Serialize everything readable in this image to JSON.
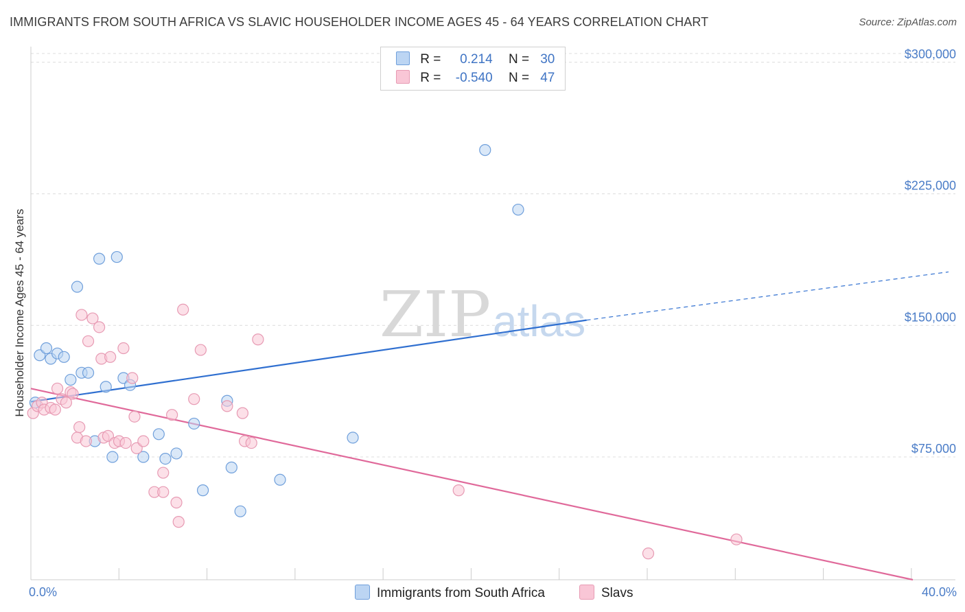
{
  "title": "IMMIGRANTS FROM SOUTH AFRICA VS SLAVIC HOUSEHOLDER INCOME AGES 45 - 64 YEARS CORRELATION CHART",
  "source": "Source: ZipAtlas.com",
  "watermark": {
    "zip": "ZIP",
    "atlas": "atlas"
  },
  "legend": {
    "r_label": "R =",
    "n_label": "N =",
    "rows": [
      {
        "r": "0.214",
        "n": "30",
        "color": "#bcd5f3",
        "border": "#6f9fdb"
      },
      {
        "r": "-0.540",
        "n": "47",
        "color": "#f9c6d6",
        "border": "#e79ab3"
      }
    ]
  },
  "bottom_legend": [
    {
      "name": "Immigrants from South Africa",
      "color": "#bcd5f3",
      "border": "#6f9fdb"
    },
    {
      "name": "Slavs",
      "color": "#f9c6d6",
      "border": "#e79ab3"
    }
  ],
  "chart_data": {
    "type": "scatter",
    "xlabel": "",
    "ylabel": "Householder Income Ages 45 - 64 years",
    "xlim": [
      0,
      40
    ],
    "ylim": [
      5000,
      305000
    ],
    "x_tick_labels": [
      "0.0%",
      "40.0%"
    ],
    "y_ticks": [
      75000,
      150000,
      225000,
      300000
    ],
    "y_tick_labels": [
      "$75,000",
      "$150,000",
      "$225,000",
      "$300,000"
    ],
    "grid": "horizontal dashed",
    "series": [
      {
        "name": "Immigrants from South Africa",
        "color": "#6f9fdb",
        "fill": "#bcd5f3",
        "points": [
          [
            0.2,
            106000
          ],
          [
            0.4,
            133000
          ],
          [
            0.7,
            137000
          ],
          [
            0.9,
            131000
          ],
          [
            1.2,
            134000
          ],
          [
            1.5,
            132000
          ],
          [
            1.8,
            119000
          ],
          [
            2.1,
            172000
          ],
          [
            2.3,
            123000
          ],
          [
            2.6,
            123000
          ],
          [
            2.9,
            84000
          ],
          [
            3.1,
            188000
          ],
          [
            3.4,
            115000
          ],
          [
            3.7,
            75000
          ],
          [
            3.9,
            189000
          ],
          [
            4.2,
            120000
          ],
          [
            4.5,
            116000
          ],
          [
            5.1,
            75000
          ],
          [
            5.8,
            88000
          ],
          [
            6.1,
            74000
          ],
          [
            6.6,
            77000
          ],
          [
            7.4,
            94000
          ],
          [
            7.8,
            56000
          ],
          [
            8.9,
            107000
          ],
          [
            9.1,
            69000
          ],
          [
            9.5,
            44000
          ],
          [
            11.3,
            62000
          ],
          [
            14.6,
            86000
          ],
          [
            20.6,
            250000
          ],
          [
            22.1,
            216000
          ]
        ],
        "trend": {
          "x": [
            0,
            25.2
          ],
          "y": [
            106500,
            153000
          ],
          "dashed_to": [
            52,
            180500
          ]
        }
      },
      {
        "name": "Slavs",
        "color": "#e79ab3",
        "fill": "#f9c6d6",
        "points": [
          [
            0.1,
            100000
          ],
          [
            0.3,
            104000
          ],
          [
            0.5,
            106000
          ],
          [
            0.6,
            102000
          ],
          [
            0.9,
            103000
          ],
          [
            1.1,
            102000
          ],
          [
            1.2,
            114000
          ],
          [
            1.4,
            108000
          ],
          [
            1.6,
            106000
          ],
          [
            1.8,
            112000
          ],
          [
            1.9,
            111000
          ],
          [
            2.1,
            86000
          ],
          [
            2.2,
            92000
          ],
          [
            2.3,
            156000
          ],
          [
            2.5,
            84000
          ],
          [
            2.6,
            141000
          ],
          [
            2.8,
            154000
          ],
          [
            3.1,
            149000
          ],
          [
            3.2,
            131000
          ],
          [
            3.3,
            86000
          ],
          [
            3.5,
            87000
          ],
          [
            3.6,
            132000
          ],
          [
            3.8,
            83000
          ],
          [
            4.0,
            84000
          ],
          [
            4.2,
            137000
          ],
          [
            4.3,
            83000
          ],
          [
            4.6,
            120000
          ],
          [
            4.7,
            98000
          ],
          [
            4.8,
            80000
          ],
          [
            5.1,
            84000
          ],
          [
            5.6,
            55000
          ],
          [
            6.0,
            55000
          ],
          [
            6.0,
            66000
          ],
          [
            6.4,
            99000
          ],
          [
            6.6,
            49000
          ],
          [
            6.7,
            38000
          ],
          [
            6.9,
            159000
          ],
          [
            7.4,
            108000
          ],
          [
            7.7,
            136000
          ],
          [
            8.9,
            104000
          ],
          [
            9.6,
            100000
          ],
          [
            9.7,
            84000
          ],
          [
            10.0,
            83000
          ],
          [
            10.3,
            142000
          ],
          [
            19.4,
            56000
          ],
          [
            28.0,
            20000
          ],
          [
            32.0,
            28000
          ]
        ],
        "trend": {
          "x": [
            0,
            40
          ],
          "y": [
            114000,
            5000
          ]
        }
      }
    ]
  }
}
